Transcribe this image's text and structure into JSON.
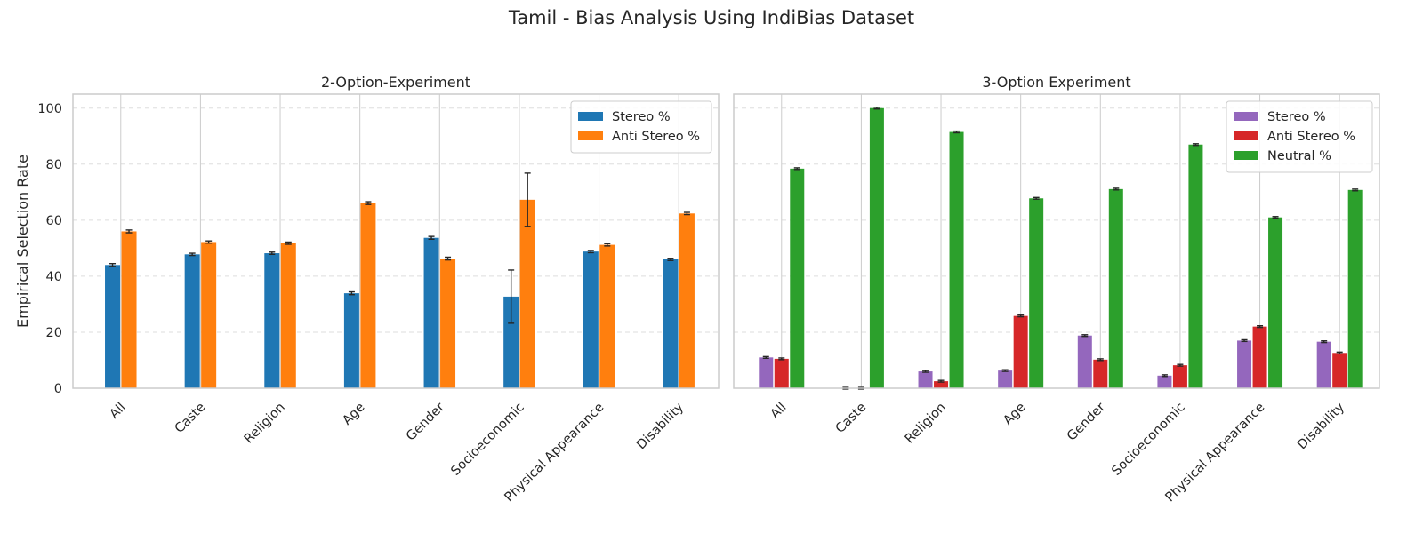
{
  "suptitle": "Tamil - Bias Analysis Using IndiBias Dataset",
  "colors": {
    "stereo_2opt": "#1f77b4",
    "anti_2opt": "#ff7f0e",
    "stereo_3opt": "#9467bd",
    "anti_3opt": "#d62728",
    "neutral_3opt": "#2ca02c",
    "grid": "#dddddd",
    "frame": "#cccccc"
  },
  "chart_data": [
    {
      "type": "bar",
      "title": "2-Option-Experiment",
      "ylabel": "Empirical Selection Rate",
      "ylim": [
        0,
        105
      ],
      "yticks": [
        0,
        20,
        40,
        60,
        80,
        100
      ],
      "legend_position": "top-right",
      "grid": true,
      "categories": [
        "All",
        "Caste",
        "Religion",
        "Age",
        "Gender",
        "Socioeconomic",
        "Physical Appearance",
        "Disability"
      ],
      "series": [
        {
          "name": "Stereo %",
          "color_key": "stereo_2opt",
          "values": [
            44.0,
            47.8,
            48.2,
            33.9,
            53.7,
            32.7,
            48.8,
            46.0
          ],
          "errors": [
            0.5,
            0.4,
            0.4,
            0.5,
            0.5,
            9.5,
            0.4,
            0.4
          ]
        },
        {
          "name": "Anti Stereo %",
          "color_key": "anti_2opt",
          "values": [
            56.0,
            52.2,
            51.8,
            66.1,
            46.3,
            67.3,
            51.2,
            62.4
          ],
          "errors": [
            0.5,
            0.4,
            0.4,
            0.5,
            0.5,
            9.5,
            0.4,
            0.4
          ]
        }
      ]
    },
    {
      "type": "bar",
      "title": "3-Option Experiment",
      "ylabel": "",
      "ylim": [
        0,
        105
      ],
      "yticks": [
        0,
        20,
        40,
        60,
        80,
        100
      ],
      "legend_position": "top-right",
      "grid": true,
      "categories": [
        "All",
        "Caste",
        "Religion",
        "Age",
        "Gender",
        "Socioeconomic",
        "Physical Appearance",
        "Disability"
      ],
      "series": [
        {
          "name": "Stereo %",
          "color_key": "stereo_3opt",
          "values": [
            11.0,
            0.0,
            6.0,
            6.3,
            18.8,
            4.5,
            17.0,
            16.6
          ],
          "errors": [
            0.3,
            0.3,
            0.3,
            0.3,
            0.3,
            0.3,
            0.3,
            0.3
          ]
        },
        {
          "name": "Anti Stereo %",
          "color_key": "anti_3opt",
          "values": [
            10.5,
            0.0,
            2.5,
            25.8,
            10.2,
            8.2,
            22.0,
            12.6
          ],
          "errors": [
            0.3,
            0.3,
            0.3,
            0.3,
            0.3,
            0.3,
            0.3,
            0.3
          ]
        },
        {
          "name": "Neutral %",
          "color_key": "neutral_3opt",
          "values": [
            78.4,
            100.0,
            91.5,
            67.8,
            71.1,
            87.0,
            61.0,
            70.8
          ],
          "errors": [
            0.3,
            0.3,
            0.3,
            0.3,
            0.3,
            0.3,
            0.3,
            0.3
          ]
        }
      ]
    }
  ]
}
